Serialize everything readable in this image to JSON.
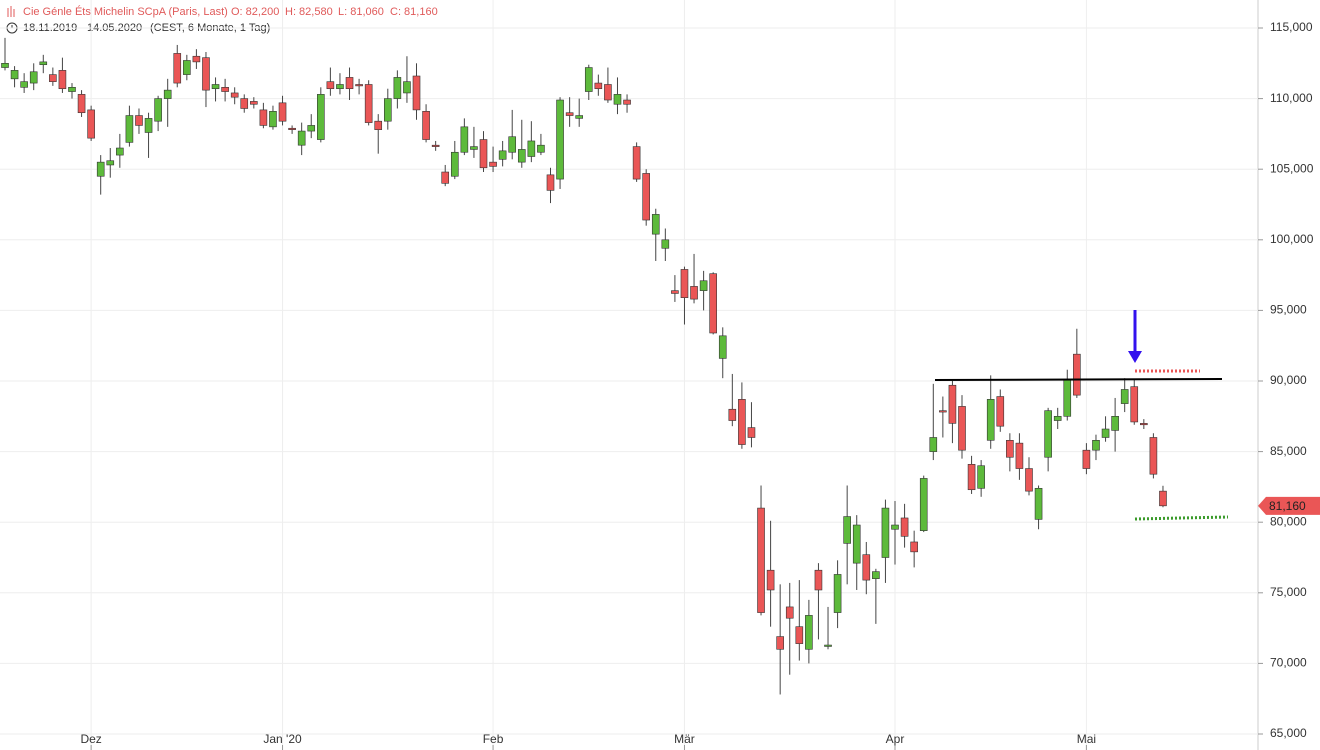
{
  "chart_data": {
    "type": "candlestick",
    "header": {
      "title": "Cie Génle Éts Michelin SCpA (Paris, Last)",
      "open": "O: 82,200",
      "high": "H: 82,580",
      "low": "L: 81,060",
      "close": "C: 81,160",
      "period": "18.11.2019 - 14.05.2020",
      "details": "(CEST, 6 Monate, 1 Tag)"
    },
    "last_value_label": "81,160",
    "up_color": "#5dba3b",
    "down_color": "#ea5656",
    "grid": true,
    "ylim": [
      65000,
      115000
    ],
    "yticks": [
      {
        "value": 65000,
        "label": "65,000"
      },
      {
        "value": 70000,
        "label": "70,000"
      },
      {
        "value": 75000,
        "label": "75,000"
      },
      {
        "value": 80000,
        "label": "80,000"
      },
      {
        "value": 85000,
        "label": "85,000"
      },
      {
        "value": 90000,
        "label": "90,000"
      },
      {
        "value": 95000,
        "label": "95,000"
      },
      {
        "value": 100000,
        "label": "100,000"
      },
      {
        "value": 105000,
        "label": "105,000"
      },
      {
        "value": 110000,
        "label": "110,000"
      },
      {
        "value": 115000,
        "label": "115,000"
      }
    ],
    "categories": [
      null,
      null,
      null,
      null,
      null,
      null,
      null,
      null,
      null,
      "Dez",
      null,
      null,
      null,
      null,
      null,
      null,
      null,
      null,
      null,
      null,
      null,
      null,
      null,
      null,
      null,
      null,
      null,
      null,
      null,
      "Jan '20",
      null,
      null,
      null,
      null,
      null,
      null,
      null,
      null,
      null,
      null,
      null,
      null,
      null,
      null,
      null,
      null,
      null,
      null,
      null,
      null,
      null,
      "Feb",
      null,
      null,
      null,
      null,
      null,
      null,
      null,
      null,
      null,
      null,
      null,
      null,
      null,
      null,
      null,
      null,
      null,
      null,
      null,
      "Mär",
      null,
      null,
      null,
      null,
      null,
      null,
      null,
      null,
      null,
      null,
      null,
      null,
      null,
      null,
      null,
      null,
      null,
      null,
      null,
      null,
      null,
      "Apr",
      null,
      null,
      null,
      null,
      null,
      null,
      null,
      null,
      null,
      null,
      null,
      null,
      null,
      null,
      null,
      null,
      null,
      null,
      null,
      "Mai",
      null,
      null,
      null,
      null,
      null,
      null,
      null,
      null
    ],
    "open": [
      112200,
      111400,
      110800,
      111100,
      112400,
      111700,
      112000,
      110500,
      110300,
      109200,
      104500,
      105300,
      106000,
      106900,
      108800,
      107600,
      108400,
      110000,
      113200,
      111700,
      113000,
      112900,
      110700,
      110800,
      110400,
      110000,
      109800,
      109200,
      108000,
      109700,
      107900,
      106700,
      107700,
      107100,
      111200,
      110700,
      111500,
      111000,
      111000,
      108400,
      108400,
      110000,
      110400,
      111600,
      109100,
      106700,
      104800,
      104500,
      106200,
      106400,
      107100,
      105500,
      105700,
      106200,
      105500,
      105900,
      106200,
      104600,
      104300,
      109000,
      108600,
      110500,
      111100,
      111000,
      109600,
      109900,
      106600,
      104700,
      100400,
      99400,
      96400,
      97900,
      96700,
      96400,
      97600,
      91600,
      88000,
      88700,
      86700,
      81000,
      76600,
      71900,
      74000,
      72600,
      71000,
      76600,
      71200,
      73600,
      78500,
      77100,
      77700,
      76000,
      77500,
      79500,
      80300,
      78600,
      79400,
      85000,
      87900,
      89700,
      88200,
      84100,
      82400,
      85800,
      88900,
      85800,
      85600,
      83800,
      80200,
      84600,
      87200,
      87500,
      91900,
      85100,
      85100,
      86000,
      86500,
      88400,
      89600,
      87000,
      86000,
      82200
    ],
    "high": [
      114300,
      112300,
      111800,
      112500,
      113100,
      112200,
      112900,
      111100,
      110600,
      109500,
      106000,
      106500,
      107500,
      109500,
      109300,
      109000,
      110200,
      111400,
      113800,
      113100,
      113500,
      113300,
      111500,
      111400,
      110800,
      110300,
      110100,
      109700,
      109500,
      110200,
      108100,
      108300,
      108900,
      110800,
      112200,
      111800,
      112200,
      111400,
      111300,
      108900,
      110700,
      112000,
      113000,
      112500,
      109600,
      107000,
      105300,
      107000,
      108600,
      108000,
      107700,
      106600,
      107000,
      109200,
      108500,
      108400,
      107500,
      105100,
      110100,
      110100,
      110000,
      112400,
      111700,
      112200,
      111500,
      110300,
      106900,
      105000,
      102200,
      100800,
      97500,
      98100,
      99000,
      97800,
      97700,
      93800,
      90500,
      89900,
      88500,
      82600,
      80100,
      75600,
      75700,
      75900,
      74500,
      77100,
      74000,
      77300,
      82600,
      80500,
      78600,
      76700,
      81600,
      81500,
      81300,
      79400,
      83300,
      89800,
      88900,
      90000,
      89000,
      84700,
      84400,
      90400,
      89400,
      86300,
      86300,
      84600,
      82600,
      88100,
      88100,
      90800,
      93700,
      85600,
      86200,
      87500,
      88800,
      90200,
      90100,
      87300,
      86300,
      82580
    ],
    "low": [
      112000,
      110800,
      110400,
      110600,
      111800,
      110900,
      110400,
      110000,
      108700,
      107000,
      103200,
      104400,
      105100,
      106600,
      107500,
      105800,
      107700,
      108000,
      110800,
      111300,
      112100,
      109400,
      109800,
      109800,
      109600,
      109000,
      109300,
      107900,
      107800,
      108100,
      107500,
      106000,
      107200,
      106900,
      110200,
      110300,
      109900,
      110300,
      108100,
      106100,
      107800,
      109300,
      109700,
      108500,
      106900,
      106300,
      103800,
      104300,
      106000,
      105800,
      104800,
      104800,
      105200,
      105700,
      105100,
      105500,
      106000,
      102600,
      103600,
      108000,
      108000,
      109900,
      110200,
      109700,
      108900,
      109000,
      104100,
      101000,
      98500,
      98500,
      95600,
      94000,
      95500,
      95000,
      93300,
      90200,
      86800,
      85200,
      85300,
      73400,
      72600,
      67800,
      69200,
      70200,
      70000,
      71700,
      71000,
      72500,
      75600,
      75200,
      74900,
      72800,
      75700,
      77000,
      78200,
      76800,
      79300,
      84400,
      86000,
      85600,
      84500,
      82000,
      81800,
      85200,
      86400,
      83600,
      83000,
      81900,
      79500,
      83600,
      86600,
      87200,
      88800,
      83400,
      84400,
      85700,
      85000,
      87800,
      86900,
      86600,
      83100,
      81060
    ],
    "close": [
      112500,
      112000,
      111200,
      111900,
      112600,
      111200,
      110700,
      110800,
      109000,
      107200,
      105500,
      105600,
      106500,
      108800,
      108100,
      108600,
      110000,
      110600,
      111100,
      112700,
      112600,
      110600,
      111000,
      110500,
      110100,
      109300,
      109600,
      108100,
      109100,
      108400,
      107800,
      107700,
      108100,
      110300,
      110700,
      111000,
      110700,
      110900,
      108300,
      107800,
      110000,
      111500,
      111200,
      109200,
      107100,
      106600,
      104000,
      106200,
      108000,
      106600,
      105100,
      105200,
      106300,
      107300,
      106400,
      107000,
      106700,
      103500,
      109900,
      108800,
      108800,
      112200,
      110700,
      109900,
      110300,
      109600,
      104300,
      101400,
      101800,
      100000,
      96200,
      95900,
      95800,
      97100,
      93400,
      93200,
      87200,
      85500,
      86000,
      73600,
      75200,
      71000,
      73200,
      71400,
      73400,
      75200,
      71300,
      76300,
      80400,
      79800,
      75900,
      76500,
      81000,
      79800,
      79000,
      77900,
      83100,
      86000,
      87800,
      87000,
      85100,
      82300,
      84000,
      88700,
      86800,
      84600,
      83800,
      82200,
      82400,
      87900,
      87500,
      90100,
      89000,
      83800,
      85800,
      86600,
      87500,
      89400,
      87100,
      86900,
      83400,
      81160
    ]
  }
}
